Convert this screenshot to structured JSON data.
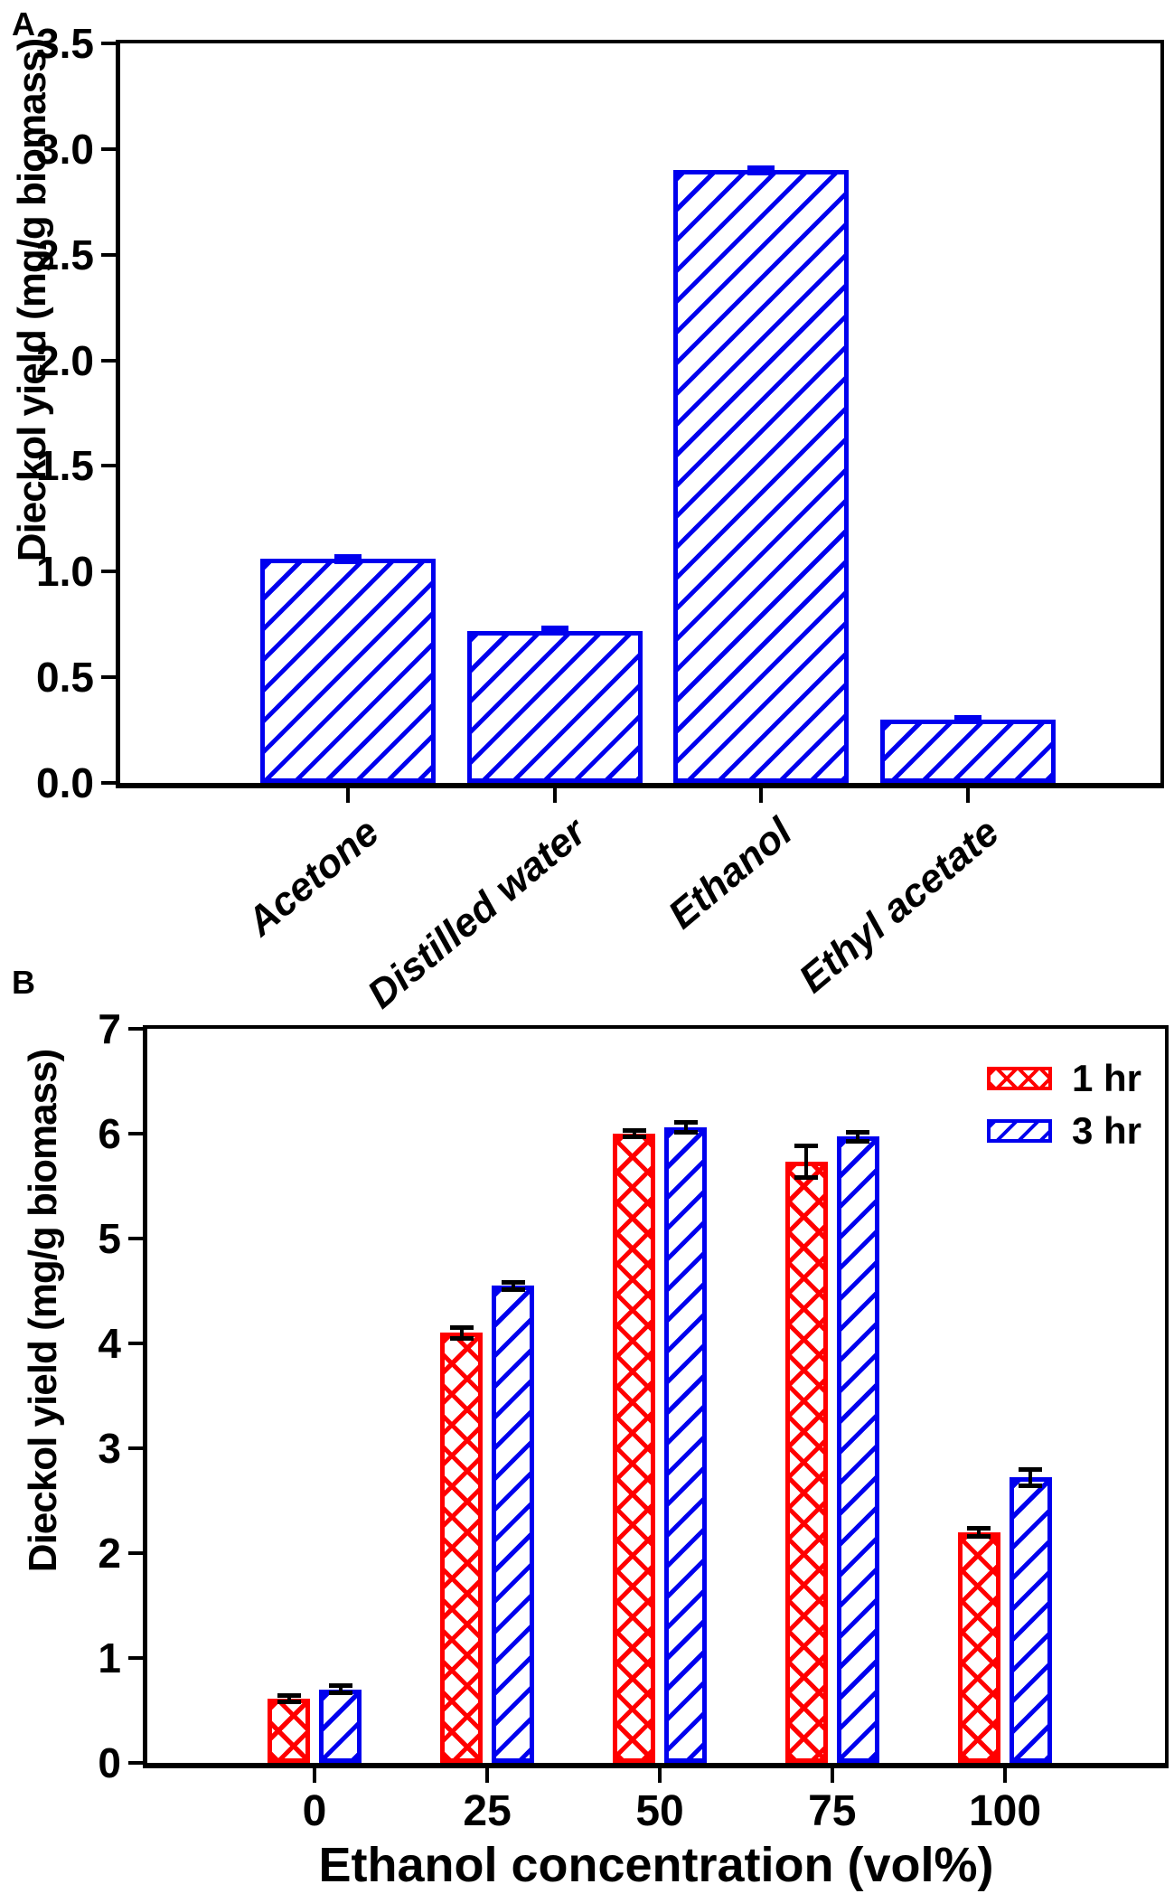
{
  "figure": {
    "panel_a_label": "A",
    "panel_b_label": "B"
  },
  "chart_data": [
    {
      "type": "bar",
      "panel": "A",
      "title": "",
      "ylabel": "Dieckol yield (mg/g biomass)",
      "xlabel": "",
      "ylim": [
        0,
        3.5
      ],
      "y_ticks": [
        "0.0",
        "0.5",
        "1.0",
        "1.5",
        "2.0",
        "2.5",
        "3.0",
        "3.5"
      ],
      "grid": false,
      "legend_position": "none",
      "categories": [
        "Acetone",
        "Distilled water",
        "Ethanol",
        "Ethyl acetate"
      ],
      "values": [
        1.06,
        0.72,
        2.9,
        0.3
      ],
      "errors": [
        0.01,
        0.01,
        0.01,
        0.01
      ],
      "bar_color": "#0000ee",
      "error_color": "#0000ee",
      "hatch": "diagonal"
    },
    {
      "type": "bar",
      "panel": "B",
      "title": "",
      "ylabel": "Dieckol yield (mg/g biomass)",
      "xlabel": "Ethanol concentration (vol%)",
      "ylim": [
        0,
        7
      ],
      "y_ticks": [
        "0",
        "1",
        "2",
        "3",
        "4",
        "5",
        "6",
        "7"
      ],
      "grid": false,
      "legend_position": "top-right",
      "categories": [
        "0",
        "25",
        "50",
        "75",
        "100"
      ],
      "series": [
        {
          "name": "1 hr",
          "color": "#ff0000",
          "hatch": "cross",
          "values": [
            0.61,
            4.1,
            6.0,
            5.73,
            2.2
          ],
          "errors": [
            0.03,
            0.05,
            0.03,
            0.15,
            0.04
          ]
        },
        {
          "name": "3 hr",
          "color": "#0000ee",
          "hatch": "diagonal",
          "values": [
            0.7,
            4.55,
            6.06,
            5.97,
            2.72
          ],
          "errors": [
            0.035,
            0.035,
            0.05,
            0.04,
            0.08
          ]
        }
      ],
      "error_color": "#000000"
    }
  ]
}
